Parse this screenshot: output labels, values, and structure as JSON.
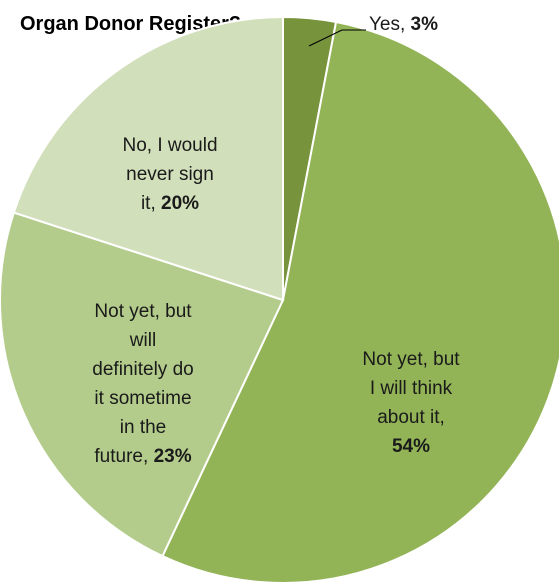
{
  "chart_data": {
    "type": "pie",
    "title": "Organ Donor Register?",
    "slices": [
      {
        "label": "Yes",
        "value": 3,
        "value_label": "3%",
        "color": "#77933c"
      },
      {
        "label": "Not yet, but I will think about it",
        "value": 54,
        "value_label": "54%",
        "color": "#92b457"
      },
      {
        "label": "Not yet, but will definitely do it sometime in the future",
        "value": 23,
        "value_label": "23%",
        "color": "#b3cc8b"
      },
      {
        "label": "No, I would never sign it",
        "value": 20,
        "value_label": "20%",
        "color": "#d1dfba"
      }
    ],
    "start": "12 o'clock",
    "direction": "clockwise",
    "legend": "none",
    "data_labels": [
      {
        "lines": [
          "Yes,"
        ],
        "value": "3%"
      },
      {
        "lines": [
          "Not yet, but",
          "I will think",
          "about it,"
        ],
        "value": "54%"
      },
      {
        "lines": [
          "Not yet, but",
          "will",
          "definitely do",
          "it sometime",
          "in the"
        ],
        "tail": "future,",
        "value": "23%"
      },
      {
        "lines": [
          "No, I would",
          "never sign"
        ],
        "tail": "it,",
        "value": "20%"
      }
    ]
  }
}
